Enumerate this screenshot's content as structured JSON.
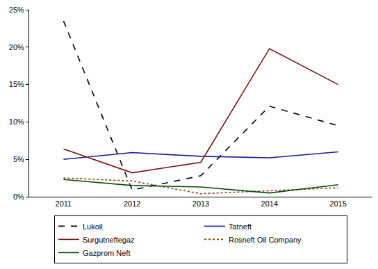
{
  "chart_data": {
    "type": "line",
    "categories": [
      "2011",
      "2012",
      "2013",
      "2014",
      "2015"
    ],
    "series": [
      {
        "name": "Lukoil",
        "color": "#000000",
        "line_style": "dash",
        "values": [
          23.5,
          0.9,
          2.8,
          12.1,
          9.5
        ]
      },
      {
        "name": "Tatneft",
        "color": "#1a1a8c",
        "line_style": "solid",
        "values": [
          5.0,
          5.9,
          5.4,
          5.2,
          6.0
        ]
      },
      {
        "name": "Surgutneftegaz",
        "color": "#7a1010",
        "line_style": "solid",
        "values": [
          6.4,
          3.2,
          4.6,
          19.8,
          15.0
        ]
      },
      {
        "name": "Rosneft Oil Company",
        "color": "#8b3a0f",
        "line_style": "dot",
        "values": [
          2.5,
          2.1,
          0.4,
          0.8,
          1.2
        ]
      },
      {
        "name": "Gazprom Neft",
        "color": "#0b4d0b",
        "line_style": "solid",
        "values": [
          2.3,
          1.5,
          1.3,
          0.5,
          1.6
        ]
      }
    ],
    "ylim": [
      0,
      25
    ],
    "yticks": [
      {
        "value": 0,
        "label": "0%"
      },
      {
        "value": 5,
        "label": "5%"
      },
      {
        "value": 10,
        "label": "10%"
      },
      {
        "value": 15,
        "label": "15%"
      },
      {
        "value": 20,
        "label": "20%"
      },
      {
        "value": 25,
        "label": "25%"
      }
    ],
    "grid": false,
    "legend": "bottom"
  }
}
